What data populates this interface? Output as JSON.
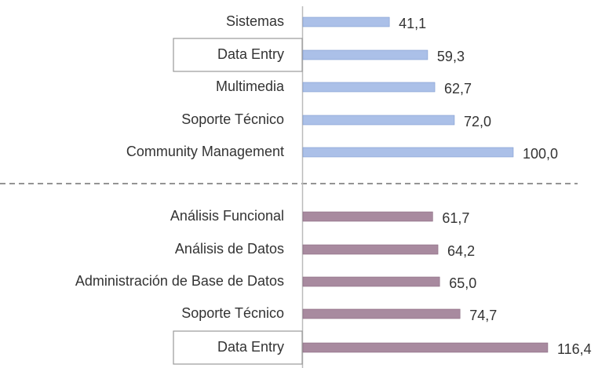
{
  "chart_data": {
    "type": "bar",
    "groups": [
      {
        "color": "#abc0e8",
        "highlight": 1,
        "categories": [
          "Sistemas",
          "Data Entry",
          "Multimedia",
          "Soporte Técnico",
          "Community Management"
        ],
        "values": [
          41.1,
          59.3,
          62.7,
          72.0,
          100.0
        ],
        "value_labels": [
          "41,1",
          "59,3",
          "62,7",
          "72,0",
          "100,0"
        ]
      },
      {
        "color": "#a88a9f",
        "highlight": 4,
        "categories": [
          "Análisis Funcional",
          "Análisis de Datos",
          "Administración de Base de Datos",
          "Soporte Técnico",
          "Data Entry"
        ],
        "values": [
          61.7,
          64.2,
          65.0,
          74.7,
          116.4
        ],
        "value_labels": [
          "61,7",
          "64,2",
          "65,0",
          "74,7",
          "116,4"
        ]
      }
    ]
  }
}
